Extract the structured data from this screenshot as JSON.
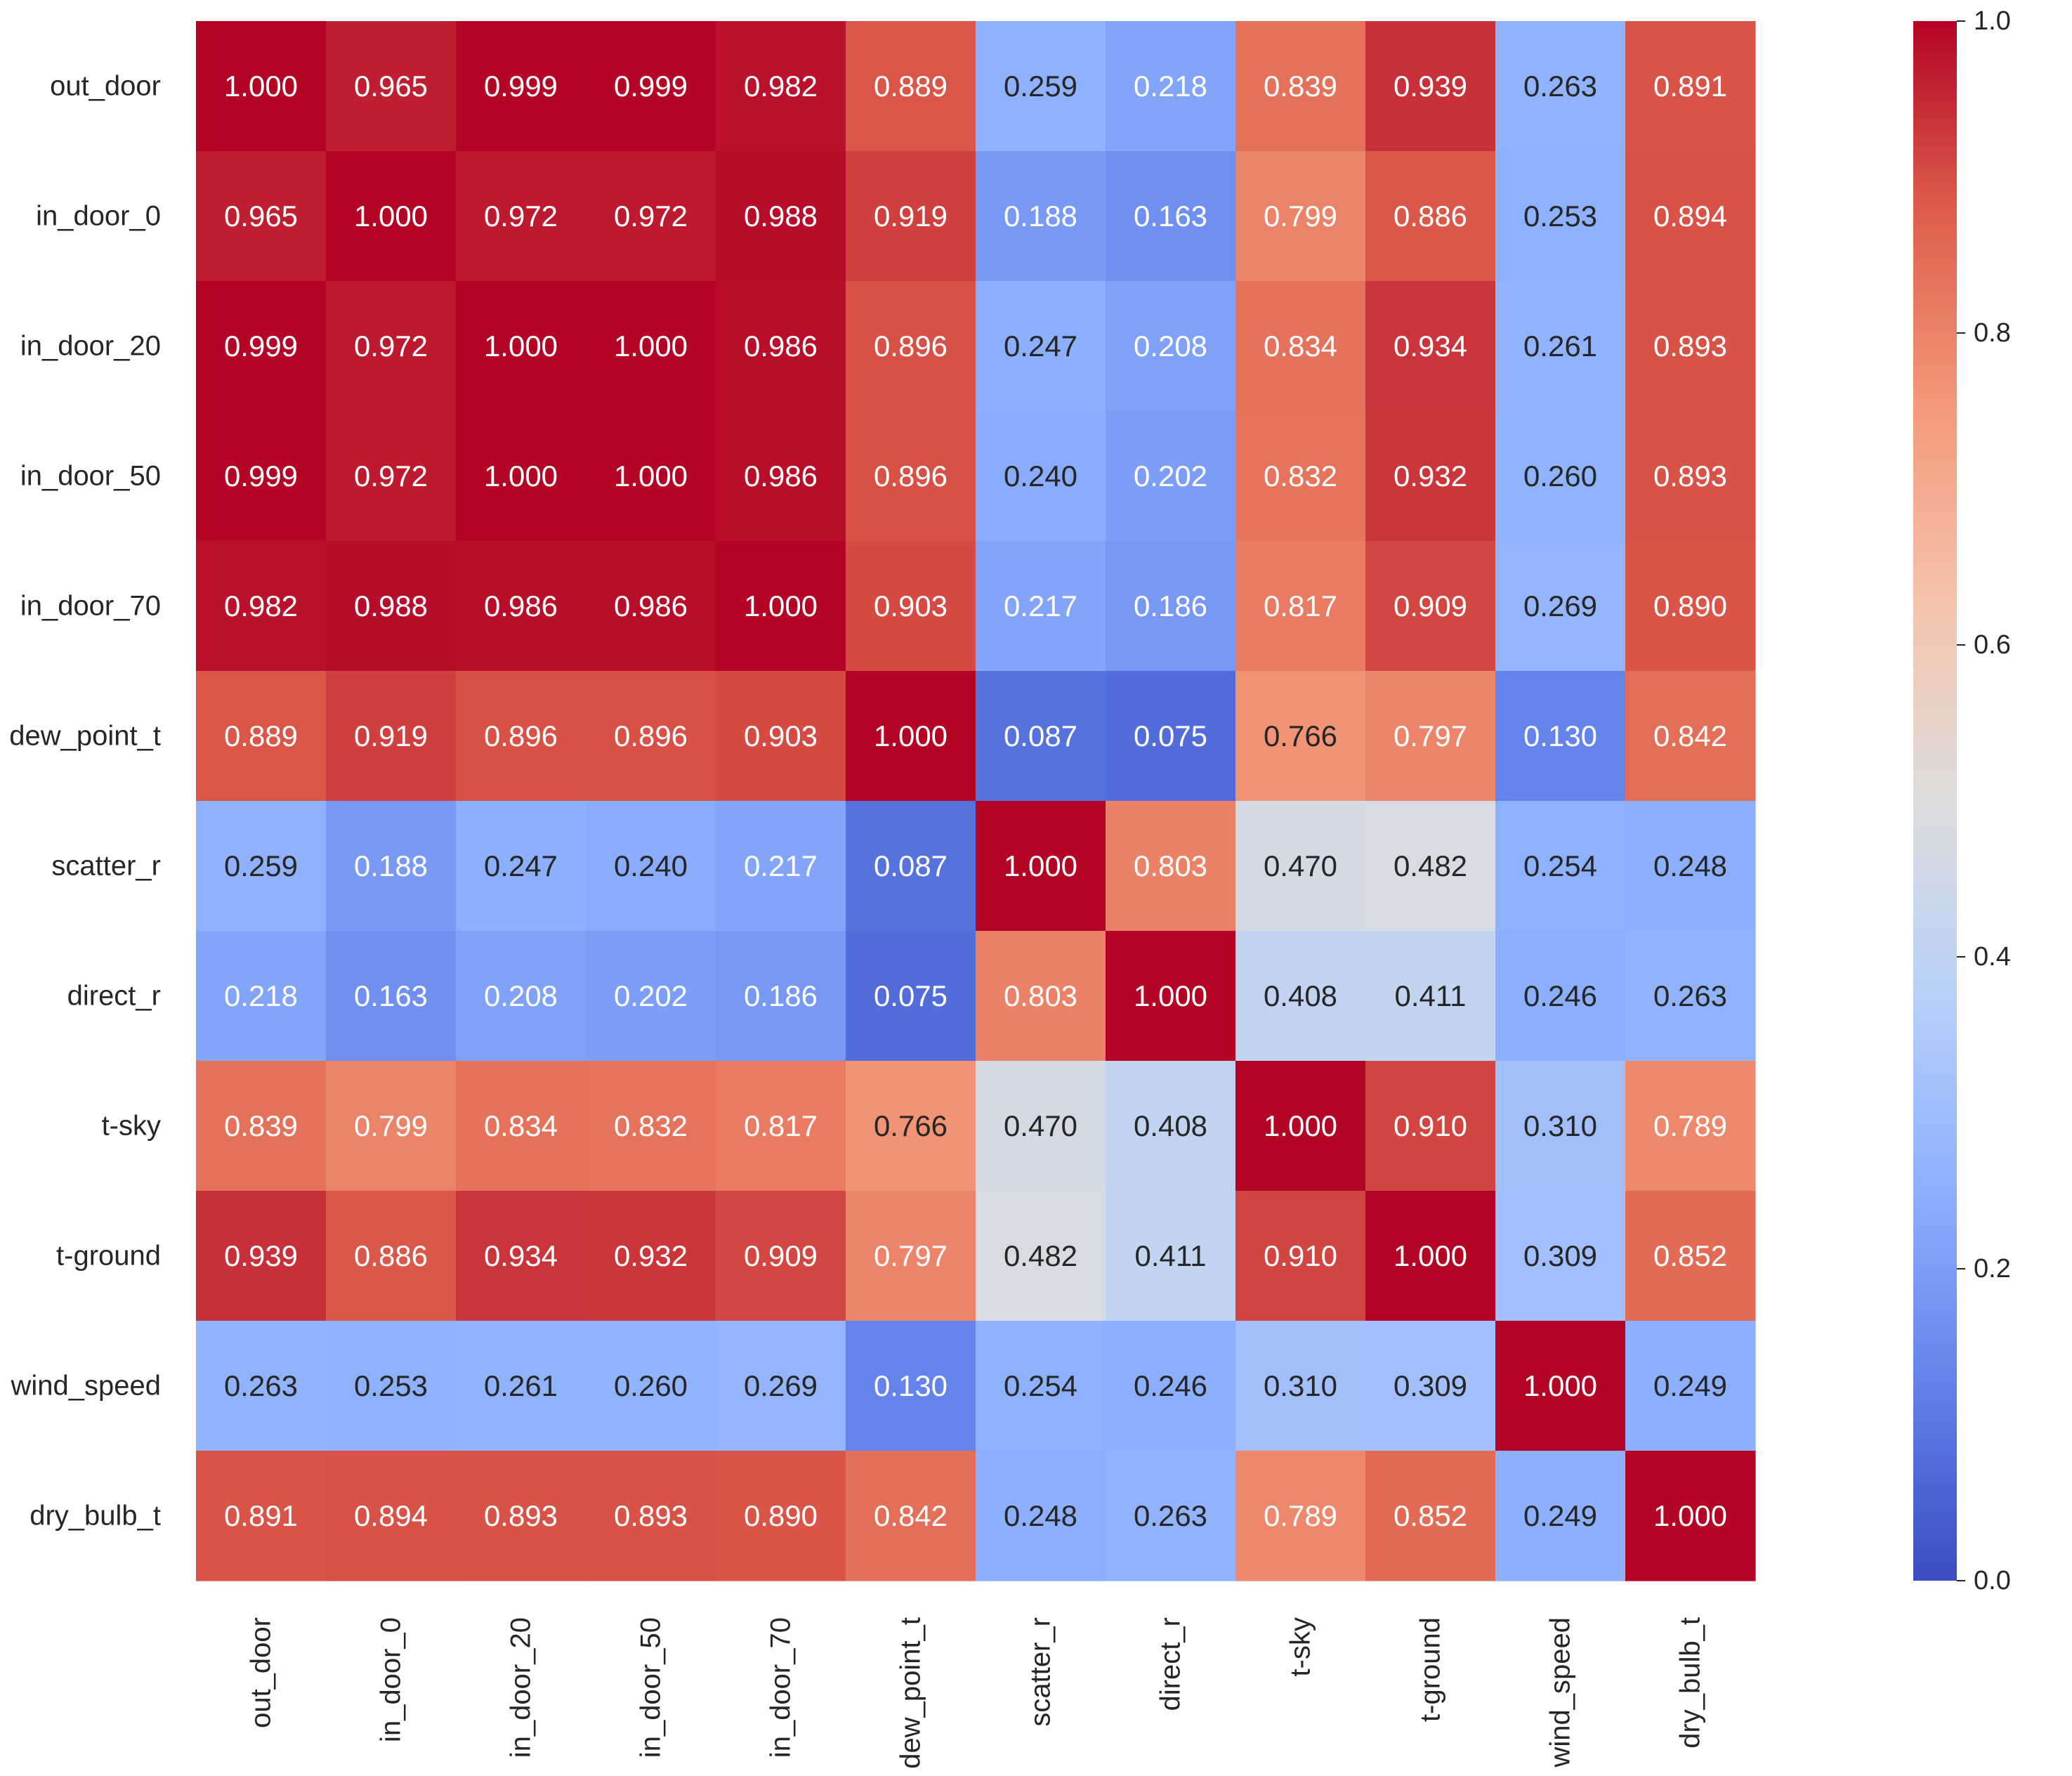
{
  "chart_data": {
    "type": "heatmap",
    "title": "",
    "xlabel": "",
    "ylabel": "",
    "labels": [
      "out_door",
      "in_door_0",
      "in_door_20",
      "in_door_50",
      "in_door_70",
      "dew_point_t",
      "scatter_r",
      "direct_r",
      "t-sky",
      "t-ground",
      "wind_speed",
      "dry_bulb_t"
    ],
    "values": [
      [
        1.0,
        0.965,
        0.999,
        0.999,
        0.982,
        0.889,
        0.259,
        0.218,
        0.839,
        0.939,
        0.263,
        0.891
      ],
      [
        0.965,
        1.0,
        0.972,
        0.972,
        0.988,
        0.919,
        0.188,
        0.163,
        0.799,
        0.886,
        0.253,
        0.894
      ],
      [
        0.999,
        0.972,
        1.0,
        1.0,
        0.986,
        0.896,
        0.247,
        0.208,
        0.834,
        0.934,
        0.261,
        0.893
      ],
      [
        0.999,
        0.972,
        1.0,
        1.0,
        0.986,
        0.896,
        0.24,
        0.202,
        0.832,
        0.932,
        0.26,
        0.893
      ],
      [
        0.982,
        0.988,
        0.986,
        0.986,
        1.0,
        0.903,
        0.217,
        0.186,
        0.817,
        0.909,
        0.269,
        0.89
      ],
      [
        0.889,
        0.919,
        0.896,
        0.896,
        0.903,
        1.0,
        0.087,
        0.075,
        0.766,
        0.797,
        0.13,
        0.842
      ],
      [
        0.259,
        0.188,
        0.247,
        0.24,
        0.217,
        0.087,
        1.0,
        0.803,
        0.47,
        0.482,
        0.254,
        0.248
      ],
      [
        0.218,
        0.163,
        0.208,
        0.202,
        0.186,
        0.075,
        0.803,
        1.0,
        0.408,
        0.411,
        0.246,
        0.263
      ],
      [
        0.839,
        0.799,
        0.834,
        0.832,
        0.817,
        0.766,
        0.47,
        0.408,
        1.0,
        0.91,
        0.31,
        0.789
      ],
      [
        0.939,
        0.886,
        0.934,
        0.932,
        0.909,
        0.797,
        0.482,
        0.411,
        0.91,
        1.0,
        0.309,
        0.852
      ],
      [
        0.263,
        0.253,
        0.261,
        0.26,
        0.269,
        0.13,
        0.254,
        0.246,
        0.31,
        0.309,
        1.0,
        0.249
      ],
      [
        0.891,
        0.894,
        0.893,
        0.893,
        0.89,
        0.842,
        0.248,
        0.263,
        0.789,
        0.852,
        0.249,
        1.0
      ]
    ],
    "value_format": "0.000",
    "colormap": "coolwarm",
    "vmin": 0.0,
    "vmax": 1.0,
    "colorbar_ticks": [
      0.0,
      0.2,
      0.4,
      0.6,
      0.8,
      1.0
    ],
    "colorbar_tick_labels": [
      "0.0",
      "0.2",
      "0.4",
      "0.6",
      "0.8",
      "1.0"
    ],
    "colorbar_position": "right"
  }
}
